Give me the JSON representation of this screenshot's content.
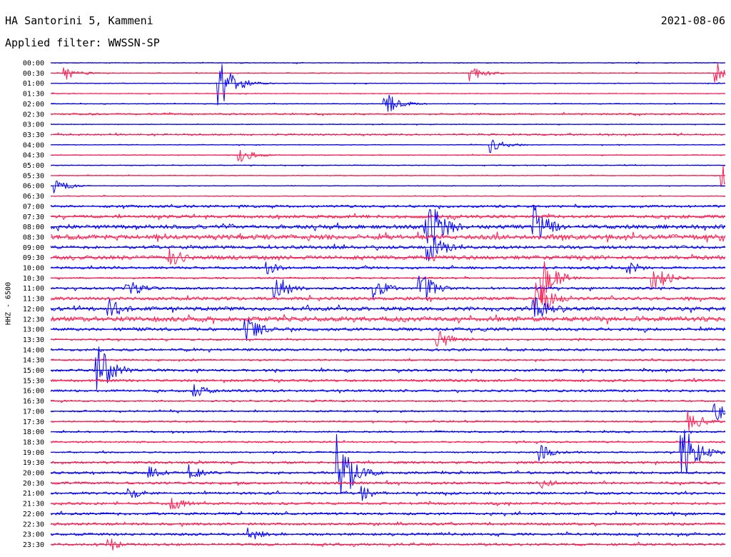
{
  "header": {
    "station": "HA Santorini 5, Kammeni",
    "date": "2021-08-06",
    "filter": "Applied filter: WWSSN-SP",
    "channel": "HHZ - 6500"
  },
  "colors": {
    "even_trace": "#0000ff",
    "odd_trace": "#ff1a4f"
  },
  "chart_data": {
    "type": "line",
    "title": "HA Santorini 5, Kammeni",
    "subtitle": "Applied filter: WWSSN-SP",
    "ylabel": "HHZ - 6500",
    "xlabel": "",
    "trace_labels": [
      "00:00",
      "00:30",
      "01:00",
      "01:30",
      "02:00",
      "02:30",
      "03:00",
      "03:30",
      "04:00",
      "04:30",
      "05:00",
      "05:30",
      "06:00",
      "06:30",
      "07:00",
      "07:30",
      "08:00",
      "08:30",
      "09:00",
      "09:30",
      "10:00",
      "10:30",
      "11:00",
      "11:30",
      "12:00",
      "12:30",
      "13:00",
      "13:30",
      "14:00",
      "14:30",
      "15:00",
      "15:30",
      "16:00",
      "16:30",
      "17:00",
      "17:30",
      "18:00",
      "18:30",
      "19:00",
      "19:30",
      "20:00",
      "20:30",
      "21:00",
      "21:30",
      "22:00",
      "22:30",
      "23:00",
      "23:30"
    ],
    "trace_duration_minutes": 30,
    "trace_colors": [
      "blue",
      "red"
    ],
    "noise_level": [
      1,
      1,
      1,
      1,
      1,
      2,
      1,
      2,
      1,
      1,
      1,
      1,
      1,
      1,
      3,
      4,
      5,
      6,
      4,
      5,
      3,
      2,
      3,
      4,
      5,
      6,
      4,
      2,
      3,
      2,
      3,
      3,
      3,
      2,
      2,
      2,
      2,
      2,
      2,
      3,
      3,
      3,
      3,
      3,
      3,
      3,
      3,
      3
    ],
    "events": [
      {
        "trace": 1,
        "t": 0.5,
        "amp": 2
      },
      {
        "trace": 1,
        "t": 18.6,
        "amp": 2
      },
      {
        "trace": 1,
        "t": 29.5,
        "amp": 3
      },
      {
        "trace": 2,
        "t": 7.4,
        "amp": 7
      },
      {
        "trace": 4,
        "t": 14.8,
        "amp": 3
      },
      {
        "trace": 8,
        "t": 19.5,
        "amp": 2
      },
      {
        "trace": 9,
        "t": 8.3,
        "amp": 2
      },
      {
        "trace": 11,
        "t": 29.8,
        "amp": 3
      },
      {
        "trace": 12,
        "t": 0.1,
        "amp": 2
      },
      {
        "trace": 16,
        "t": 16.6,
        "amp": 10
      },
      {
        "trace": 16,
        "t": 21.4,
        "amp": 6
      },
      {
        "trace": 18,
        "t": 16.7,
        "amp": 5
      },
      {
        "trace": 19,
        "t": 5.2,
        "amp": 3
      },
      {
        "trace": 20,
        "t": 9.5,
        "amp": 2
      },
      {
        "trace": 20,
        "t": 25.6,
        "amp": 2
      },
      {
        "trace": 21,
        "t": 21.8,
        "amp": 6
      },
      {
        "trace": 21,
        "t": 26.7,
        "amp": 4
      },
      {
        "trace": 22,
        "t": 3.3,
        "amp": 3
      },
      {
        "trace": 22,
        "t": 9.9,
        "amp": 4
      },
      {
        "trace": 22,
        "t": 14.3,
        "amp": 3
      },
      {
        "trace": 22,
        "t": 16.3,
        "amp": 5
      },
      {
        "trace": 23,
        "t": 21.5,
        "amp": 6
      },
      {
        "trace": 24,
        "t": 2.5,
        "amp": 3
      },
      {
        "trace": 24,
        "t": 21.4,
        "amp": 4
      },
      {
        "trace": 26,
        "t": 8.6,
        "amp": 4
      },
      {
        "trace": 27,
        "t": 17.1,
        "amp": 3
      },
      {
        "trace": 30,
        "t": 2.0,
        "amp": 7
      },
      {
        "trace": 32,
        "t": 6.3,
        "amp": 2
      },
      {
        "trace": 34,
        "t": 29.4,
        "amp": 3
      },
      {
        "trace": 35,
        "t": 28.3,
        "amp": 3
      },
      {
        "trace": 38,
        "t": 21.7,
        "amp": 2
      },
      {
        "trace": 38,
        "t": 28.0,
        "amp": 8
      },
      {
        "trace": 40,
        "t": 4.3,
        "amp": 2
      },
      {
        "trace": 40,
        "t": 6.1,
        "amp": 2
      },
      {
        "trace": 40,
        "t": 12.7,
        "amp": 10
      },
      {
        "trace": 41,
        "t": 21.6,
        "amp": 2
      },
      {
        "trace": 42,
        "t": 3.4,
        "amp": 2
      },
      {
        "trace": 42,
        "t": 13.8,
        "amp": 2
      },
      {
        "trace": 43,
        "t": 5.3,
        "amp": 2
      },
      {
        "trace": 46,
        "t": 8.7,
        "amp": 2
      },
      {
        "trace": 47,
        "t": 2.5,
        "amp": 2
      }
    ]
  }
}
